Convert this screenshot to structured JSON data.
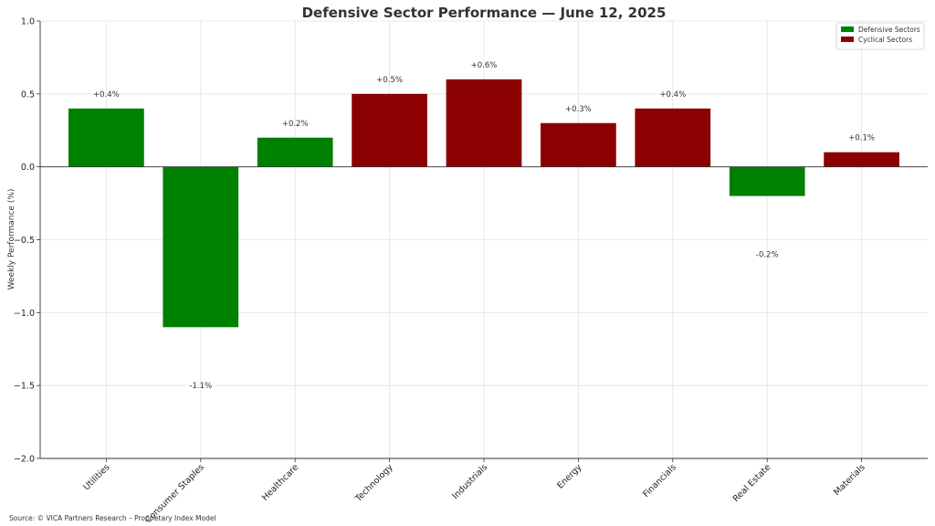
{
  "chart_data": {
    "type": "bar",
    "title": "Defensive Sector Performance — June 12, 2025",
    "xlabel": "",
    "ylabel": "Weekly Performance (%)",
    "ylim": [
      -2.0,
      1.0
    ],
    "yticks": [
      1.0,
      0.5,
      0.0,
      -0.5,
      -1.0,
      -1.5,
      -2.0
    ],
    "ytick_labels": [
      "1.0",
      "0.5",
      "0.0",
      "−0.5",
      "−1.0",
      "−1.5",
      "−2.0"
    ],
    "grid": true,
    "legend_position": "top-right",
    "categories": [
      "Utilities",
      "Consumer Staples",
      "Healthcare",
      "Technology",
      "Industrials",
      "Energy",
      "Financials",
      "Real Estate",
      "Materials"
    ],
    "values": [
      0.4,
      -1.1,
      0.2,
      0.5,
      0.6,
      0.3,
      0.4,
      -0.2,
      0.1
    ],
    "groups": [
      "Defensive Sectors",
      "Defensive Sectors",
      "Defensive Sectors",
      "Cyclical Sectors",
      "Cyclical Sectors",
      "Cyclical Sectors",
      "Cyclical Sectors",
      "Defensive Sectors",
      "Cyclical Sectors"
    ],
    "data_labels": [
      "+0.4%",
      "-1.1%",
      "+0.2%",
      "+0.5%",
      "+0.6%",
      "+0.3%",
      "+0.4%",
      "-0.2%",
      "+0.1%"
    ],
    "legend": [
      {
        "name": "Defensive Sectors",
        "color": "#008000"
      },
      {
        "name": "Cyclical Sectors",
        "color": "#8b0000"
      }
    ]
  },
  "source_note": "Source: © VICA Partners Research – Proprietary Index Model"
}
